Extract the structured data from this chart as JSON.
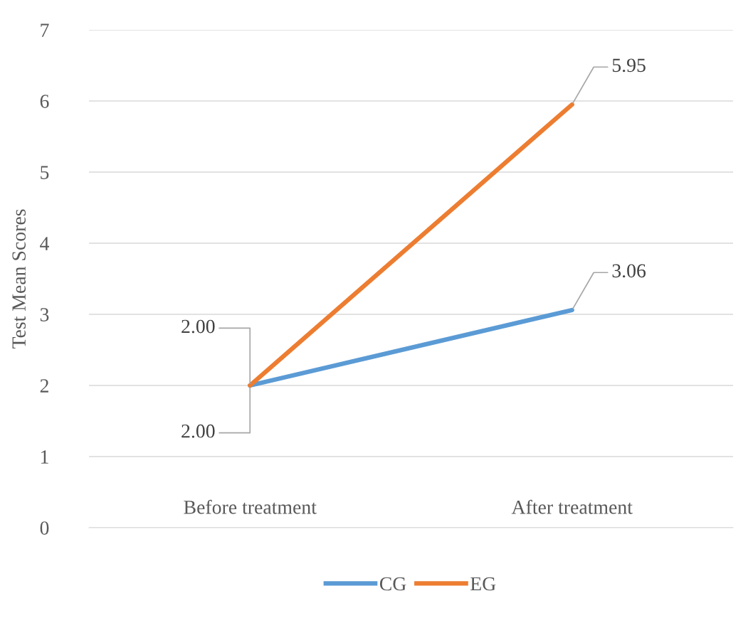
{
  "chart_data": {
    "type": "line",
    "ylabel": "Test Mean Scores",
    "categories": [
      "Before treatment",
      "After treatment"
    ],
    "series": [
      {
        "name": "CG",
        "color": "#5b9bd5",
        "values": [
          2.0,
          3.06
        ],
        "value_labels": [
          "2.00",
          "3.06"
        ]
      },
      {
        "name": "EG",
        "color": "#ed7d31",
        "values": [
          2.0,
          5.95
        ],
        "value_labels": [
          "2.00",
          "5.95"
        ]
      }
    ],
    "ylim": [
      0,
      7
    ],
    "yticks": [
      0,
      1,
      2,
      3,
      4,
      5,
      6,
      7
    ],
    "grid": "y",
    "legend": "bottom",
    "marker": "none",
    "line_style": "solid"
  }
}
